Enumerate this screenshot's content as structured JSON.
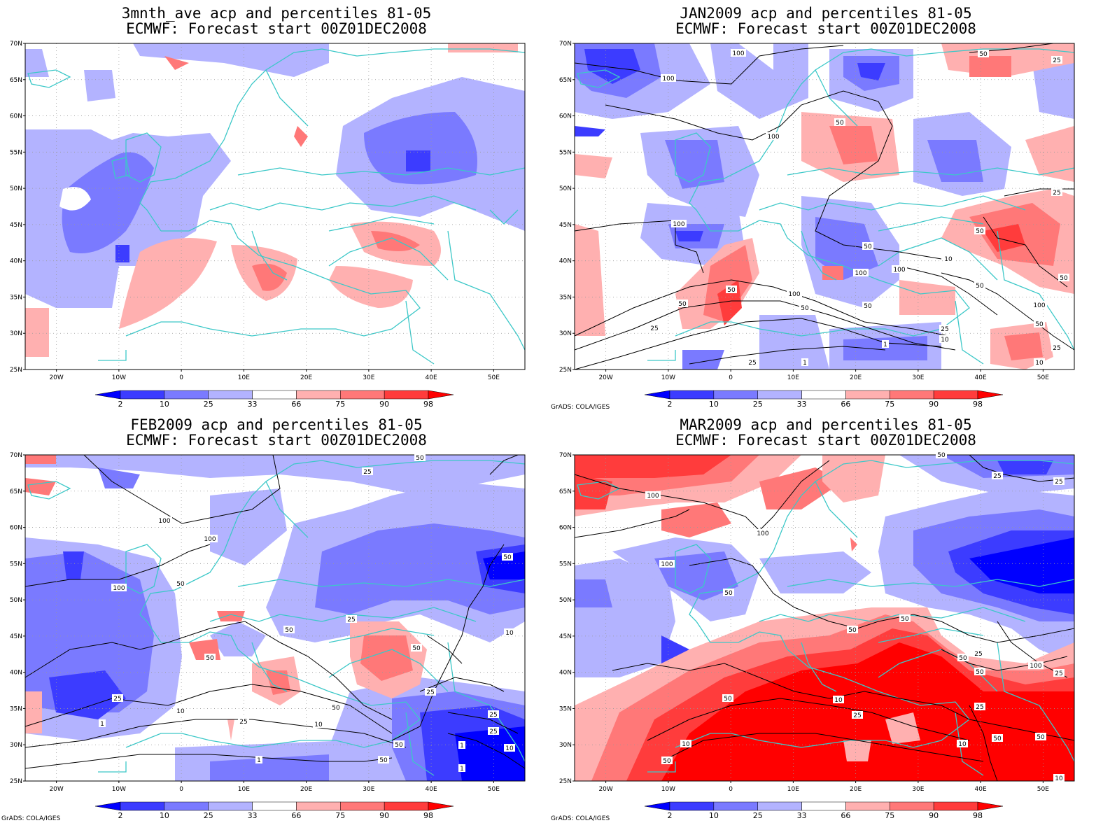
{
  "panels": [
    {
      "title": "3mnth_ave acp and percentiles 81-05",
      "subtitle": "ECMWF: Forecast start 00Z01DEC2008",
      "contour_labels": []
    },
    {
      "title": "JAN2009 acp and percentiles 81-05",
      "subtitle": "ECMWF: Forecast start 00Z01DEC2008",
      "contour_labels": [
        "100",
        "100",
        "100",
        "50",
        "50",
        "25",
        "100",
        "50",
        "100",
        "100",
        "50",
        "25",
        "10",
        "1",
        "25",
        "50",
        "50",
        "100",
        "50",
        "50",
        "25",
        "10",
        "50",
        "25",
        "10",
        "1",
        "25",
        "50",
        "100",
        "50"
      ]
    },
    {
      "title": "FEB2009 acp and percentiles 81-05",
      "subtitle": "ECMWF: Forecast start 00Z01DEC2008",
      "contour_labels": [
        "50",
        "25",
        "100",
        "100",
        "100",
        "50",
        "25",
        "50",
        "50",
        "50",
        "25",
        "10",
        "1",
        "1",
        "50",
        "50",
        "25",
        "10",
        "25",
        "50",
        "25",
        "50",
        "1",
        "1",
        "10",
        "25",
        "10"
      ]
    },
    {
      "title": "MAR2009 acp and percentiles 81-05",
      "subtitle": "ECMWF: Forecast start 00Z01DEC2008",
      "contour_labels": [
        "50",
        "25",
        "25",
        "100",
        "100",
        "100",
        "50",
        "50",
        "50",
        "50",
        "50",
        "25",
        "10",
        "25",
        "10",
        "50",
        "50",
        "100",
        "50",
        "25",
        "25",
        "50",
        "10",
        "10"
      ]
    }
  ],
  "lat_ticks": [
    "70N",
    "65N",
    "60N",
    "55N",
    "50N",
    "45N",
    "40N",
    "35N",
    "30N",
    "25N"
  ],
  "lon_ticks": [
    "20W",
    "10W",
    "0",
    "10E",
    "20E",
    "30E",
    "40E",
    "50E"
  ],
  "colorbar_labels": [
    "2",
    "10",
    "25",
    "33",
    "66",
    "75",
    "90",
    "98"
  ],
  "colorbar_colors": [
    "#0000ff",
    "#3c3cff",
    "#7a7aff",
    "#b3b3ff",
    "#ffffff",
    "#ffb0b0",
    "#ff7878",
    "#ff3c3c",
    "#ff0000"
  ],
  "credit": "GrADS: COLA/IGES",
  "colors": {
    "coast": "#3cc8c8",
    "contour": "#000000"
  },
  "chart_data": {
    "type": "heatmap",
    "map_extent": {
      "lon": [
        -25,
        55
      ],
      "lat": [
        25,
        70
      ]
    },
    "variable": "acp",
    "panels": [
      {
        "name": "3mnth_ave",
        "features": [
          {
            "lon": -12,
            "lat": 41,
            "percentile": 10
          },
          {
            "lon": -5,
            "lat": 54,
            "percentile": 10
          },
          {
            "lon": 40,
            "lat": 53,
            "percentile": 10
          },
          {
            "lon": 10,
            "lat": 66,
            "percentile": 25
          },
          {
            "lon": 30,
            "lat": 40,
            "percentile": 75
          },
          {
            "lon": 15,
            "lat": 38,
            "percentile": 90
          },
          {
            "lon": 33,
            "lat": 36,
            "percentile": 75
          },
          {
            "lon": -5,
            "lat": 35,
            "percentile": 66
          }
        ]
      },
      {
        "name": "JAN2009",
        "features": [
          {
            "lon": -17,
            "lat": 67,
            "percentile": 2
          },
          {
            "lon": 23,
            "lat": 66,
            "percentile": 10
          },
          {
            "lon": 41,
            "lat": 52,
            "percentile": 10
          },
          {
            "lon": 0,
            "lat": 43,
            "percentile": 10
          },
          {
            "lon": 40,
            "lat": 69,
            "percentile": 90
          },
          {
            "lon": 20,
            "lat": 56,
            "percentile": 90
          },
          {
            "lon": 44,
            "lat": 42,
            "percentile": 98
          },
          {
            "lon": 0,
            "lat": 35,
            "percentile": 90
          },
          {
            "lon": 45,
            "lat": 28,
            "percentile": 90
          }
        ]
      },
      {
        "name": "FEB2009",
        "features": [
          {
            "lon": -15,
            "lat": 35,
            "percentile": 2
          },
          {
            "lon": 47,
            "lat": 30,
            "percentile": 2
          },
          {
            "lon": 53,
            "lat": 54,
            "percentile": 2
          },
          {
            "lon": -18,
            "lat": 56,
            "percentile": 10
          },
          {
            "lon": 33,
            "lat": 41,
            "percentile": 90
          },
          {
            "lon": 16,
            "lat": 38,
            "percentile": 90
          },
          {
            "lon": 4,
            "lat": 43,
            "percentile": 90
          }
        ]
      },
      {
        "name": "MAR2009",
        "features": [
          {
            "lon": 48,
            "lat": 53,
            "percentile": 2
          },
          {
            "lon": 35,
            "lat": 55,
            "percentile": 10
          },
          {
            "lon": 10,
            "lat": 35,
            "percentile": 98
          },
          {
            "lon": 40,
            "lat": 33,
            "percentile": 98
          },
          {
            "lon": -18,
            "lat": 66,
            "percentile": 98
          },
          {
            "lon": 10,
            "lat": 63,
            "percentile": 75
          }
        ]
      }
    ]
  }
}
